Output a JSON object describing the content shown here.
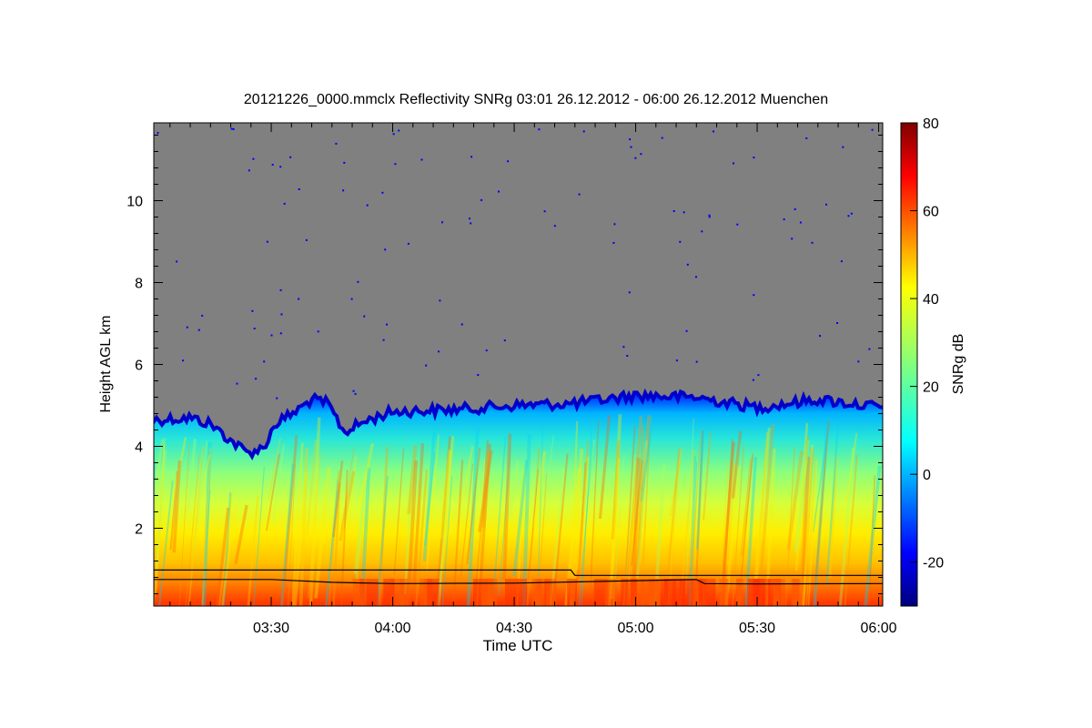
{
  "chart_data": {
    "type": "heatmap",
    "title": "20121226_0000.mmclx Reflectivity SNRg   03:01 26.12.2012 - 06:00 26.12.2012 Muenchen",
    "xlabel": "Time UTC",
    "ylabel": "Height AGL km",
    "xlim": [
      "03:01",
      "06:01"
    ],
    "ylim": [
      0.1,
      11.9
    ],
    "x_ticks": [
      "03:30",
      "04:00",
      "04:30",
      "05:00",
      "05:30",
      "06:00"
    ],
    "y_ticks": [
      "2",
      "4",
      "6",
      "8",
      "10"
    ],
    "colorbar": {
      "label": "SNRg dB",
      "range": [
        -30,
        80
      ],
      "ticks": [
        "-20",
        "0",
        "20",
        "40",
        "60",
        "80"
      ],
      "colormap": "jet"
    },
    "background_color": "#808080",
    "echo_top_km": [
      {
        "time": "03:01",
        "top": 4.7
      },
      {
        "time": "03:10",
        "top": 4.75
      },
      {
        "time": "03:15",
        "top": 4.6
      },
      {
        "time": "03:20",
        "top": 4.2
      },
      {
        "time": "03:24",
        "top": 3.9
      },
      {
        "time": "03:28",
        "top": 4.0
      },
      {
        "time": "03:31",
        "top": 4.6
      },
      {
        "time": "03:36",
        "top": 4.9
      },
      {
        "time": "03:40",
        "top": 5.2
      },
      {
        "time": "03:44",
        "top": 5.1
      },
      {
        "time": "03:48",
        "top": 4.4
      },
      {
        "time": "03:54",
        "top": 4.7
      },
      {
        "time": "04:00",
        "top": 4.9
      },
      {
        "time": "04:15",
        "top": 4.95
      },
      {
        "time": "04:30",
        "top": 5.05
      },
      {
        "time": "04:45",
        "top": 5.1
      },
      {
        "time": "05:00",
        "top": 5.3
      },
      {
        "time": "05:15",
        "top": 5.25
      },
      {
        "time": "05:30",
        "top": 5.0
      },
      {
        "time": "05:45",
        "top": 5.2
      },
      {
        "time": "06:01",
        "top": 5.0
      }
    ],
    "lines_km": [
      {
        "points": [
          [
            "03:01",
            0.98
          ],
          [
            "04:44",
            0.98
          ],
          [
            "04:45",
            0.85
          ],
          [
            "06:01",
            0.85
          ]
        ]
      },
      {
        "points": [
          [
            "03:01",
            0.75
          ],
          [
            "03:30",
            0.75
          ],
          [
            "03:45",
            0.68
          ],
          [
            "04:00",
            0.65
          ],
          [
            "04:30",
            0.66
          ],
          [
            "05:00",
            0.72
          ],
          [
            "05:15",
            0.75
          ],
          [
            "05:17",
            0.65
          ],
          [
            "05:30",
            0.64
          ],
          [
            "06:01",
            0.65
          ]
        ]
      }
    ]
  }
}
